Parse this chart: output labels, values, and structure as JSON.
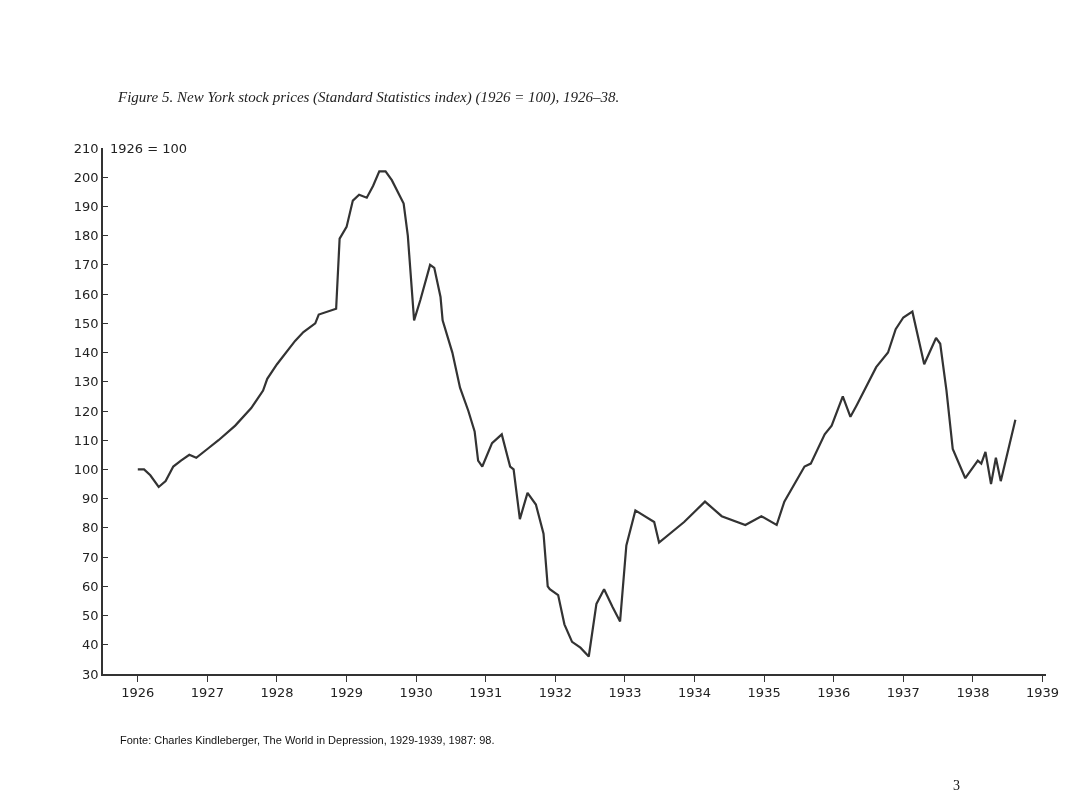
{
  "chart_data": {
    "type": "line",
    "title": "Figure 5. New York stock prices (Standard Statistics index) (1926 = 100), 1926–38.",
    "ylabel": "1926 = 100",
    "annotations": [
      "Fonte: Charles Kindleberger, The World in Depression, 1929-1939, 1987: 98.",
      "3"
    ],
    "x": [
      1926.0,
      1926.09,
      1926.18,
      1926.3,
      1926.4,
      1926.51,
      1926.62,
      1926.74,
      1926.84,
      1927.0,
      1927.16,
      1927.4,
      1927.63,
      1927.8,
      1927.86,
      1928.0,
      1928.26,
      1928.38,
      1928.55,
      1928.6,
      1928.85,
      1928.9,
      1929.0,
      1929.09,
      1929.18,
      1929.29,
      1929.38,
      1929.47,
      1929.56,
      1929.65,
      1929.82,
      1929.88,
      1929.97,
      1930.06,
      1930.2,
      1930.26,
      1930.35,
      1930.38,
      1930.52,
      1930.63,
      1930.75,
      1930.84,
      1930.89,
      1930.95,
      1931.09,
      1931.23,
      1931.35,
      1931.4,
      1931.49,
      1931.6,
      1931.72,
      1931.83,
      1931.89,
      1931.92,
      1932.04,
      1932.13,
      1932.24,
      1932.36,
      1932.48,
      1932.59,
      1932.7,
      1932.82,
      1932.93,
      1933.02,
      1933.15,
      1933.42,
      1933.49,
      1933.85,
      1934.15,
      1934.39,
      1934.73,
      1934.96,
      1935.18,
      1935.29,
      1935.58,
      1935.67,
      1935.87,
      1935.97,
      1936.13,
      1936.24,
      1936.33,
      1936.61,
      1936.78,
      1936.89,
      1937.0,
      1937.13,
      1937.3,
      1937.47,
      1937.53,
      1937.62,
      1937.71,
      1937.89,
      1938.07,
      1938.12,
      1938.18,
      1938.26,
      1938.33,
      1938.4,
      1938.61
    ],
    "series": [
      {
        "color": "#333333",
        "values": [
          100,
          100,
          98,
          94,
          96,
          101,
          103,
          105,
          104,
          107,
          110,
          115,
          121,
          127,
          131,
          136,
          144,
          147,
          150,
          153,
          155,
          179,
          183,
          192,
          194,
          193,
          197,
          202,
          202,
          199,
          191,
          180,
          151,
          158,
          170,
          169,
          159,
          151,
          140,
          128,
          120,
          113,
          103,
          101,
          109,
          112,
          101,
          100,
          83,
          92,
          88,
          78,
          60,
          59,
          57,
          47,
          41,
          39,
          36,
          54,
          59,
          53,
          48,
          74,
          86,
          82,
          75,
          82,
          89,
          84,
          81,
          84,
          81,
          89,
          101,
          102,
          112,
          115,
          125,
          118,
          122,
          135,
          140,
          148,
          152,
          154,
          136,
          145,
          143,
          127,
          107,
          97,
          103,
          102,
          106,
          95,
          104,
          96,
          117
        ]
      }
    ],
    "xlim": [
      1925.5,
      1939.05
    ],
    "xticks": [
      1926,
      1927,
      1928,
      1929,
      1930,
      1931,
      1932,
      1933,
      1934,
      1935,
      1936,
      1937,
      1938,
      1939
    ],
    "ylim": [
      30,
      210
    ],
    "yticks": [
      30,
      40,
      50,
      60,
      70,
      80,
      90,
      100,
      110,
      120,
      130,
      140,
      150,
      160,
      170,
      180,
      190,
      200,
      210
    ],
    "line_style": "solid"
  }
}
